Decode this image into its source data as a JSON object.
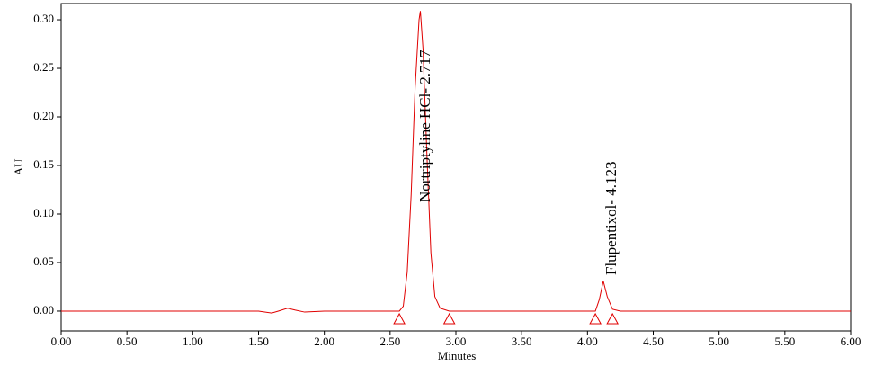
{
  "chart_data": {
    "type": "line",
    "xlabel": "Minutes",
    "ylabel": "AU",
    "xlim": [
      0,
      6
    ],
    "ylim": [
      -0.0204,
      0.3167
    ],
    "xticks": [
      {
        "value": 0,
        "label": "0.00"
      },
      {
        "value": 0.5,
        "label": "0.50"
      },
      {
        "value": 1,
        "label": "1.00"
      },
      {
        "value": 1.5,
        "label": "1.50"
      },
      {
        "value": 2,
        "label": "2.00"
      },
      {
        "value": 2.5,
        "label": "2.50"
      },
      {
        "value": 3,
        "label": "3.00"
      },
      {
        "value": 3.5,
        "label": "3.50"
      },
      {
        "value": 4,
        "label": "4.00"
      },
      {
        "value": 4.5,
        "label": "4.50"
      },
      {
        "value": 5,
        "label": "5.00"
      },
      {
        "value": 5.5,
        "label": "5.50"
      },
      {
        "value": 6,
        "label": "6.00"
      }
    ],
    "yticks": [
      {
        "value": 0,
        "label": "0.00"
      },
      {
        "value": 0.05,
        "label": "0.05"
      },
      {
        "value": 0.1,
        "label": "0.10"
      },
      {
        "value": 0.15,
        "label": "0.15"
      },
      {
        "value": 0.2,
        "label": "0.20"
      },
      {
        "value": 0.25,
        "label": "0.25"
      },
      {
        "value": 0.3,
        "label": "0.30"
      }
    ],
    "x": [
      0,
      1.5,
      1.6,
      1.65,
      1.72,
      1.78,
      1.85,
      2.0,
      2.5,
      2.57,
      2.6,
      2.63,
      2.66,
      2.69,
      2.72,
      2.73,
      2.75,
      2.78,
      2.81,
      2.84,
      2.88,
      2.95,
      4.0,
      4.06,
      4.09,
      4.12,
      4.15,
      4.19,
      4.25,
      6.0
    ],
    "series": [
      {
        "color": "#e00000",
        "values": [
          0,
          0,
          -0.002,
          0,
          0.003,
          0.001,
          -0.001,
          0,
          0,
          0,
          0.005,
          0.04,
          0.12,
          0.23,
          0.3,
          0.309,
          0.27,
          0.16,
          0.06,
          0.015,
          0.003,
          0,
          0,
          0,
          0.012,
          0.031,
          0.015,
          0.002,
          0,
          0
        ]
      }
    ],
    "peak_markers": [
      2.57,
      2.95,
      4.06,
      4.19
    ],
    "annotations": [
      "Nortriptyline HCl- 2.717",
      "Flupentixol- 4.123"
    ]
  }
}
